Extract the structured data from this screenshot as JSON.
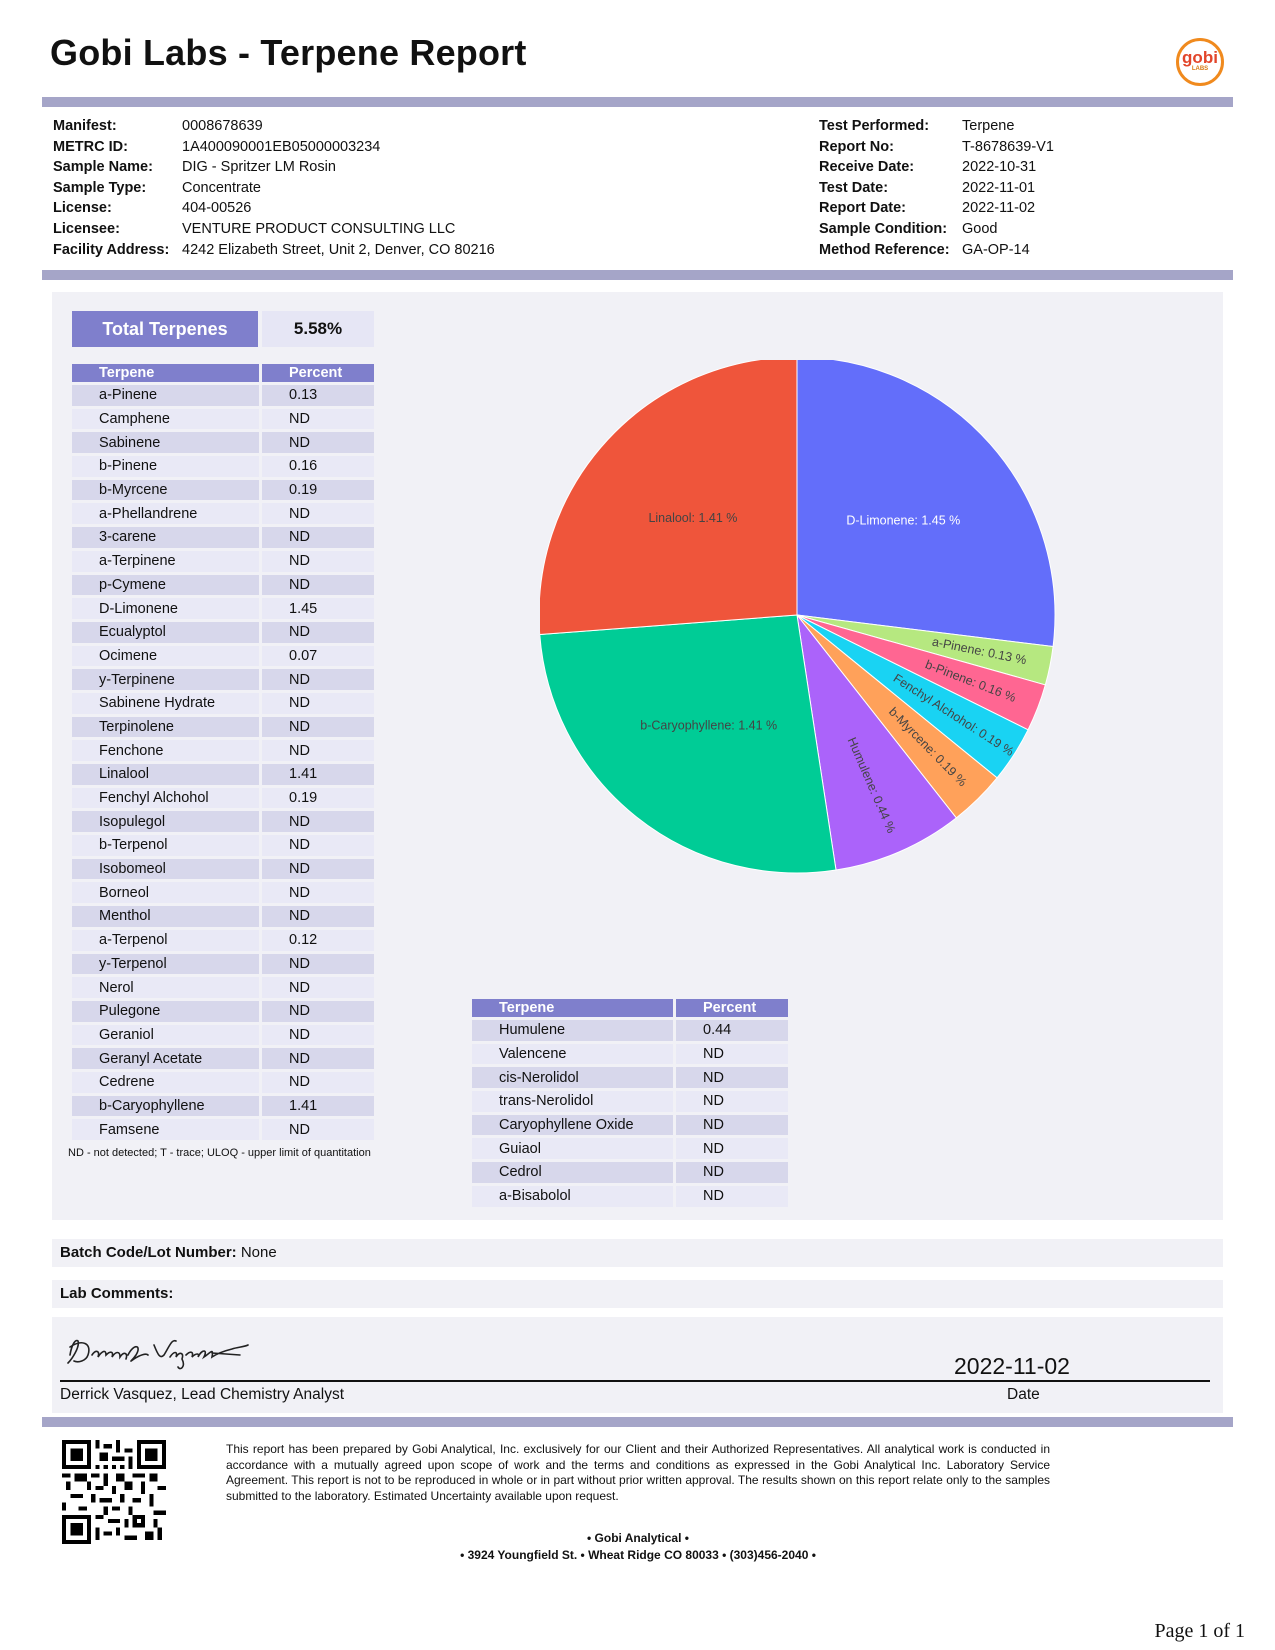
{
  "header": {
    "title": "Gobi Labs - Terpene Report",
    "logo_text": "gobi",
    "logo_sub": "LABS"
  },
  "info_left": [
    {
      "label": "Manifest:",
      "value": "0008678639"
    },
    {
      "label": "METRC ID:",
      "value": "1A400090001EB05000003234"
    },
    {
      "label": "Sample Name:",
      "value": "DIG - Spritzer LM Rosin"
    },
    {
      "label": "Sample Type:",
      "value": "Concentrate"
    },
    {
      "label": "License:",
      "value": "404-00526"
    },
    {
      "label": "Licensee:",
      "value": "VENTURE PRODUCT CONSULTING LLC"
    },
    {
      "label": "Facility Address:",
      "value": "4242 Elizabeth Street, Unit 2, Denver, CO 80216"
    }
  ],
  "info_right": [
    {
      "label": "Test Performed:",
      "value": "Terpene"
    },
    {
      "label": "Report No:",
      "value": "T-8678639-V1"
    },
    {
      "label": "Receive Date:",
      "value": "2022-10-31"
    },
    {
      "label": "Test Date:",
      "value": "2022-11-01"
    },
    {
      "label": "Report Date:",
      "value": "2022-11-02"
    },
    {
      "label": "Sample Condition:",
      "value": "Good"
    },
    {
      "label": "Method Reference:",
      "value": "GA-OP-14"
    }
  ],
  "total": {
    "label": "Total Terpenes",
    "value": "5.58%"
  },
  "table_headers": {
    "terpene": "Terpene",
    "percent": "Percent"
  },
  "table1": [
    {
      "name": "a-Pinene",
      "pct": "0.13"
    },
    {
      "name": "Camphene",
      "pct": "ND"
    },
    {
      "name": "Sabinene",
      "pct": "ND"
    },
    {
      "name": "b-Pinene",
      "pct": "0.16"
    },
    {
      "name": "b-Myrcene",
      "pct": "0.19"
    },
    {
      "name": "a-Phellandrene",
      "pct": "ND"
    },
    {
      "name": "3-carene",
      "pct": "ND"
    },
    {
      "name": "a-Terpinene",
      "pct": "ND"
    },
    {
      "name": "p-Cymene",
      "pct": "ND"
    },
    {
      "name": "D-Limonene",
      "pct": "1.45"
    },
    {
      "name": "Ecualyptol",
      "pct": "ND"
    },
    {
      "name": "Ocimene",
      "pct": "0.07"
    },
    {
      "name": "y-Terpinene",
      "pct": "ND"
    },
    {
      "name": "Sabinene Hydrate",
      "pct": "ND"
    },
    {
      "name": "Terpinolene",
      "pct": "ND"
    },
    {
      "name": "Fenchone",
      "pct": "ND"
    },
    {
      "name": "Linalool",
      "pct": "1.41"
    },
    {
      "name": "Fenchyl Alchohol",
      "pct": "0.19"
    },
    {
      "name": "Isopulegol",
      "pct": "ND"
    },
    {
      "name": "b-Terpenol",
      "pct": "ND"
    },
    {
      "name": "Isobomeol",
      "pct": "ND"
    },
    {
      "name": "Borneol",
      "pct": "ND"
    },
    {
      "name": "Menthol",
      "pct": "ND"
    },
    {
      "name": "a-Terpenol",
      "pct": "0.12"
    },
    {
      "name": "y-Terpenol",
      "pct": "ND"
    },
    {
      "name": "Nerol",
      "pct": "ND"
    },
    {
      "name": "Pulegone",
      "pct": "ND"
    },
    {
      "name": "Geraniol",
      "pct": "ND"
    },
    {
      "name": "Geranyl Acetate",
      "pct": "ND"
    },
    {
      "name": "Cedrene",
      "pct": "ND"
    },
    {
      "name": "b-Caryophyllene",
      "pct": "1.41"
    },
    {
      "name": "Famsene",
      "pct": "ND"
    }
  ],
  "table2": [
    {
      "name": "Humulene",
      "pct": "0.44"
    },
    {
      "name": "Valencene",
      "pct": "ND"
    },
    {
      "name": "cis-Nerolidol",
      "pct": "ND"
    },
    {
      "name": "trans-Nerolidol",
      "pct": "ND"
    },
    {
      "name": "Caryophyllene Oxide",
      "pct": "ND"
    },
    {
      "name": "Guiaol",
      "pct": "ND"
    },
    {
      "name": "Cedrol",
      "pct": "ND"
    },
    {
      "name": "a-Bisabolol",
      "pct": "ND"
    }
  ],
  "legend": "ND - not detected; T - trace; ULOQ - upper limit of quantitation",
  "chart_data": {
    "type": "pie",
    "slices": [
      {
        "label": "D-Limonene: 1.45 %",
        "value": 1.45,
        "color": "#636efa"
      },
      {
        "label": "a-Pinene: 0.13 %",
        "value": 0.13,
        "color": "#b6e880"
      },
      {
        "label": "b-Pinene: 0.16 %",
        "value": 0.16,
        "color": "#ff6692"
      },
      {
        "label": "Fenchyl Alchohol: 0.19 %",
        "value": 0.19,
        "color": "#19d3f3"
      },
      {
        "label": "b-Myrcene: 0.19 %",
        "value": 0.19,
        "color": "#ffa15a"
      },
      {
        "label": "Humulene: 0.44 %",
        "value": 0.44,
        "color": "#ab63fa"
      },
      {
        "label": "b-Caryophyllene: 1.41 %",
        "value": 1.41,
        "color": "#00cc96"
      },
      {
        "label": "Linalool: 1.41 %",
        "value": 1.41,
        "color": "#ef553b"
      }
    ],
    "direction": "clockwise",
    "start": "top"
  },
  "batch": {
    "label": "Batch Code/Lot Number:",
    "value": "None"
  },
  "comments": {
    "label": "Lab Comments:",
    "value": ""
  },
  "signature": {
    "signature_text": "Derrick Vasquez",
    "name": "Derrick Vasquez, Lead Chemistry Analyst",
    "date": "2022-11-02",
    "date_label": "Date"
  },
  "footer": {
    "disclaimer": "This report has been prepared by Gobi Analytical, Inc. exclusively for our Client and their Authorized Representatives. All analytical work is conducted in accordance with a mutually agreed upon scope of work and the terms and conditions as expressed in the Gobi Analytical Inc. Laboratory Service Agreement. This report is not to be reproduced in whole or in part without prior written approval. The results shown on this report relate only to the samples submitted to the laboratory. Estimated Uncertainty available upon request.",
    "company": "• Gobi Analytical •",
    "address": "• 3924 Youngfield St. • Wheat Ridge CO 80033 • (303)456-2040 •",
    "page": "Page 1 of 1"
  }
}
